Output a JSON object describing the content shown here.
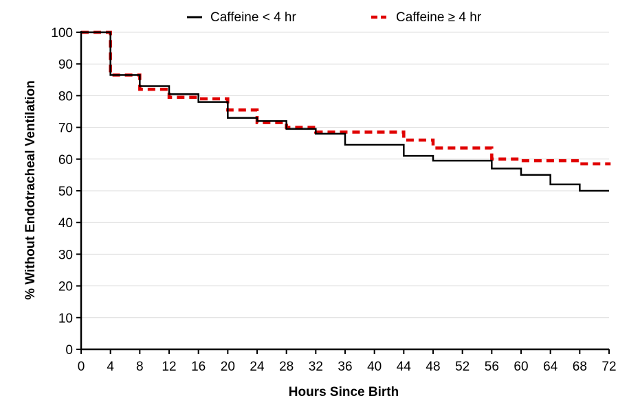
{
  "chart_data": {
    "type": "line",
    "step": true,
    "title": "",
    "xlabel": "Hours Since Birth",
    "ylabel": "% Without  Endotracheal Ventilation",
    "xlim": [
      0,
      72
    ],
    "ylim": [
      0,
      100
    ],
    "x_ticks": [
      "0",
      "4",
      "8",
      "12",
      "16",
      "20",
      "24",
      "28",
      "32",
      "36",
      "40",
      "44",
      "48",
      "52",
      "56",
      "60",
      "64",
      "68",
      "72"
    ],
    "y_ticks": [
      "0",
      "10",
      "20",
      "30",
      "40",
      "50",
      "60",
      "70",
      "80",
      "90",
      "100"
    ],
    "grid": "horizontal",
    "legend_position": "top",
    "series": [
      {
        "name": "Caffeine < 4 hr",
        "color": "#000000",
        "style": "solid",
        "x": [
          0,
          4,
          8,
          12,
          16,
          20,
          24,
          28,
          32,
          36,
          44,
          48,
          56,
          60,
          64,
          68,
          72
        ],
        "y": [
          100,
          86.5,
          83,
          80.5,
          78,
          73,
          72,
          69.5,
          68,
          64.5,
          61,
          59.5,
          57,
          55,
          52,
          50,
          50
        ]
      },
      {
        "name": "Caffeine ≥ 4 hr",
        "color": "#e00000",
        "style": "dashed",
        "x": [
          0,
          4,
          8,
          12,
          16,
          20,
          24,
          28,
          32,
          44,
          48,
          56,
          60,
          64,
          68,
          72
        ],
        "y": [
          100,
          86.5,
          82,
          79.5,
          79,
          75.5,
          71.5,
          70,
          68.5,
          66,
          63.5,
          60,
          59.5,
          59.5,
          58.5,
          58
        ]
      }
    ]
  }
}
